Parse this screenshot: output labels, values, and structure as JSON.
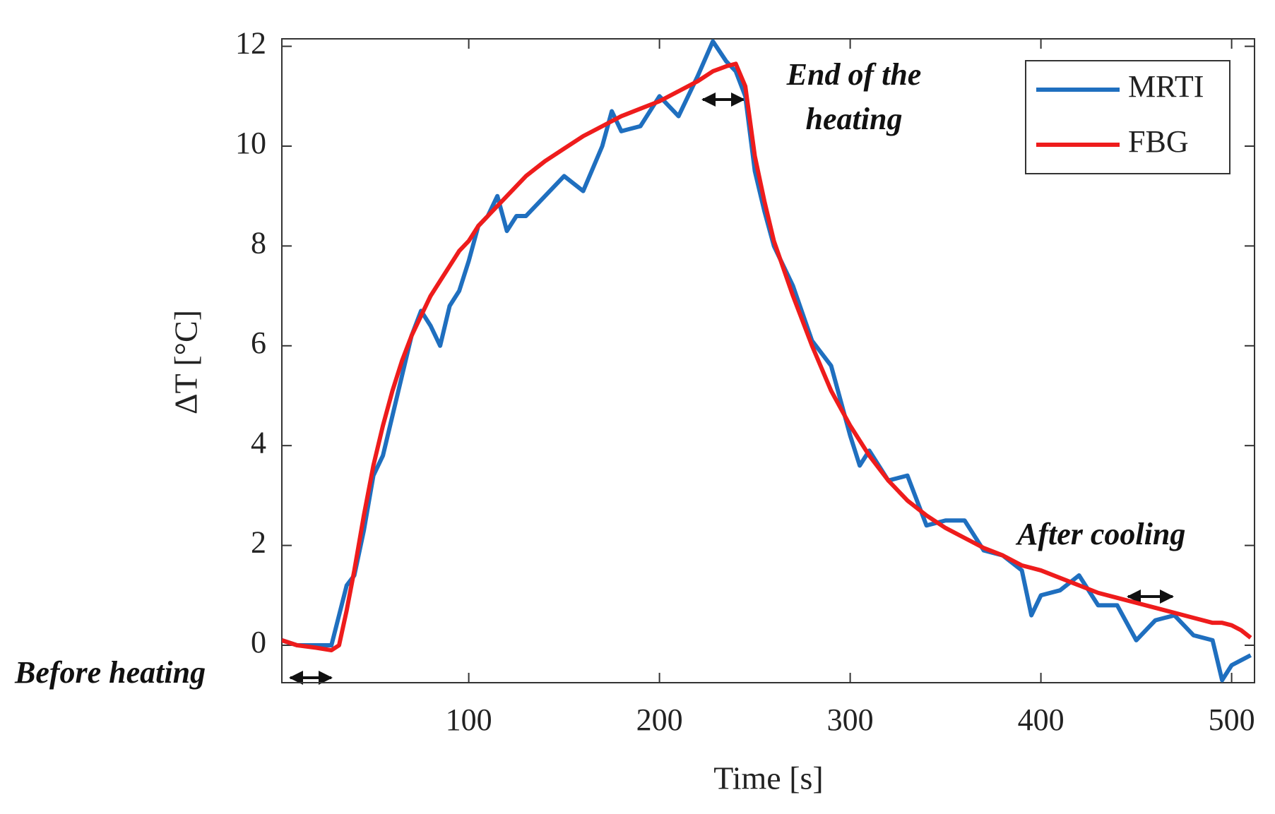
{
  "chart_data": {
    "type": "line",
    "xlabel": "Time [s]",
    "ylabel": "ΔT [°C]",
    "x": [
      2,
      10,
      20,
      28,
      32,
      36,
      40,
      45,
      50,
      55,
      60,
      65,
      70,
      75,
      80,
      85,
      90,
      95,
      100,
      105,
      110,
      115,
      120,
      125,
      130,
      140,
      150,
      160,
      170,
      175,
      180,
      190,
      200,
      210,
      220,
      228,
      235,
      240,
      245,
      250,
      255,
      260,
      270,
      280,
      290,
      300,
      305,
      310,
      320,
      330,
      340,
      350,
      360,
      370,
      380,
      390,
      395,
      400,
      410,
      420,
      430,
      440,
      450,
      460,
      470,
      480,
      490,
      495,
      500,
      505,
      510
    ],
    "series": [
      {
        "name": "MRTI",
        "color": "#1f6fbf",
        "values": [
          0.1,
          0.0,
          0.0,
          0.0,
          0.6,
          1.2,
          1.4,
          2.3,
          3.4,
          3.8,
          4.6,
          5.4,
          6.2,
          6.7,
          6.4,
          6.0,
          6.8,
          7.1,
          7.7,
          8.4,
          8.6,
          9.0,
          8.3,
          8.6,
          8.6,
          9.0,
          9.4,
          9.1,
          10.0,
          10.7,
          10.3,
          10.4,
          11.0,
          10.6,
          11.4,
          12.1,
          11.7,
          11.5,
          11.0,
          9.5,
          8.7,
          8.0,
          7.2,
          6.1,
          5.6,
          4.2,
          3.6,
          3.9,
          3.3,
          3.4,
          2.4,
          2.5,
          2.5,
          1.9,
          1.8,
          1.5,
          0.6,
          1.0,
          1.1,
          1.4,
          0.8,
          0.8,
          0.1,
          0.5,
          0.6,
          0.2,
          0.1,
          -0.7,
          -0.4,
          -0.3,
          -0.2
        ]
      },
      {
        "name": "FBG",
        "color": "#ee1c1c",
        "values": [
          0.1,
          0.0,
          -0.05,
          -0.1,
          0.0,
          0.7,
          1.5,
          2.6,
          3.6,
          4.4,
          5.1,
          5.7,
          6.2,
          6.6,
          7.0,
          7.3,
          7.6,
          7.9,
          8.1,
          8.4,
          8.6,
          8.8,
          9.0,
          9.2,
          9.4,
          9.7,
          9.95,
          10.2,
          10.4,
          10.5,
          10.6,
          10.75,
          10.9,
          11.1,
          11.3,
          11.5,
          11.6,
          11.65,
          11.2,
          9.8,
          8.9,
          8.1,
          7.0,
          6.0,
          5.1,
          4.4,
          4.1,
          3.8,
          3.3,
          2.9,
          2.6,
          2.35,
          2.15,
          1.95,
          1.8,
          1.6,
          1.55,
          1.5,
          1.35,
          1.2,
          1.05,
          0.95,
          0.85,
          0.75,
          0.65,
          0.55,
          0.45,
          0.45,
          0.4,
          0.3,
          0.15
        ]
      }
    ],
    "xlim": [
      2,
      512
    ],
    "ylim": [
      -0.75,
      12.15
    ],
    "xticks": [
      100,
      200,
      300,
      400,
      500
    ],
    "yticks": [
      0,
      2,
      4,
      6,
      8,
      10,
      12
    ],
    "legend": "upper right",
    "annotations": [
      {
        "lines": [
          "Before heating"
        ]
      },
      {
        "lines": [
          "End of the",
          "heating"
        ]
      },
      {
        "lines": [
          "After cooling"
        ]
      }
    ]
  }
}
